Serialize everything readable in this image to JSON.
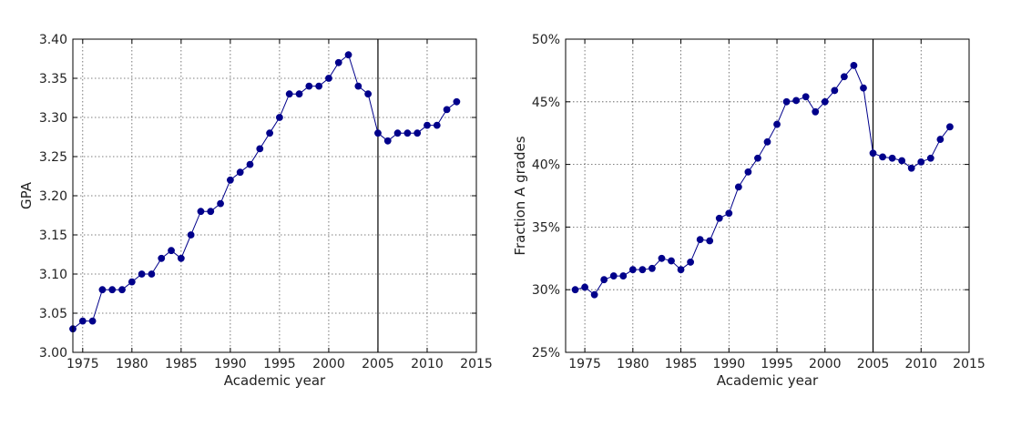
{
  "chart_data": [
    {
      "type": "line",
      "title": "",
      "xlabel": "Academic year",
      "ylabel": "GPA",
      "xlim": [
        1974,
        2015
      ],
      "ylim": [
        3.0,
        3.4
      ],
      "xticks": [
        1975,
        1980,
        1985,
        1990,
        1995,
        2000,
        2005,
        2010,
        2015
      ],
      "yticks": [
        3.0,
        3.05,
        3.1,
        3.15,
        3.2,
        3.25,
        3.3,
        3.35,
        3.4
      ],
      "ytick_labels": [
        "3.00",
        "3.05",
        "3.10",
        "3.15",
        "3.20",
        "3.25",
        "3.30",
        "3.35",
        "3.40"
      ],
      "grid": true,
      "vertical_line_x": 2005,
      "color": "#00008b",
      "series": [
        {
          "x": [
            1974,
            1975,
            1976,
            1977,
            1978,
            1979,
            1980,
            1981,
            1982,
            1983,
            1984,
            1985,
            1986,
            1987,
            1988,
            1989,
            1990,
            1991,
            1992,
            1993,
            1994,
            1995,
            1996,
            1997,
            1998,
            1999,
            2000,
            2001,
            2002,
            2003,
            2004,
            2005,
            2006,
            2007,
            2008,
            2009,
            2010,
            2011,
            2012,
            2013
          ],
          "values": [
            3.03,
            3.04,
            3.04,
            3.08,
            3.08,
            3.08,
            3.09,
            3.1,
            3.1,
            3.12,
            3.13,
            3.12,
            3.15,
            3.18,
            3.18,
            3.19,
            3.22,
            3.23,
            3.24,
            3.26,
            3.28,
            3.3,
            3.33,
            3.33,
            3.34,
            3.34,
            3.35,
            3.37,
            3.38,
            3.34,
            3.33,
            3.28,
            3.27,
            3.28,
            3.28,
            3.28,
            3.29,
            3.29,
            3.31,
            3.32
          ]
        }
      ]
    },
    {
      "type": "line",
      "title": "",
      "xlabel": "Academic year",
      "ylabel": "Fraction A grades",
      "xlim": [
        1973,
        2015
      ],
      "ylim": [
        25,
        50
      ],
      "xticks": [
        1975,
        1980,
        1985,
        1990,
        1995,
        2000,
        2005,
        2010,
        2015
      ],
      "yticks": [
        25,
        30,
        35,
        40,
        45,
        50
      ],
      "ytick_labels": [
        "25%",
        "30%",
        "35%",
        "40%",
        "45%",
        "50%"
      ],
      "grid": true,
      "vertical_line_x": 2005,
      "color": "#00008b",
      "series": [
        {
          "x": [
            1974,
            1975,
            1976,
            1977,
            1978,
            1979,
            1980,
            1981,
            1982,
            1983,
            1984,
            1985,
            1986,
            1987,
            1988,
            1989,
            1990,
            1991,
            1992,
            1993,
            1994,
            1995,
            1996,
            1997,
            1998,
            1999,
            2000,
            2001,
            2002,
            2003,
            2004,
            2005,
            2006,
            2007,
            2008,
            2009,
            2010,
            2011,
            2012,
            2013
          ],
          "values": [
            30.0,
            30.2,
            29.6,
            30.8,
            31.1,
            31.1,
            31.6,
            31.6,
            31.7,
            32.5,
            32.3,
            31.6,
            32.2,
            34.0,
            33.9,
            35.7,
            36.1,
            38.2,
            39.4,
            40.5,
            41.8,
            43.2,
            45.0,
            45.1,
            45.4,
            44.2,
            45.0,
            45.9,
            47.0,
            47.9,
            46.1,
            40.9,
            40.6,
            40.5,
            40.3,
            39.7,
            40.2,
            40.5,
            42.0,
            43.0
          ]
        }
      ]
    }
  ]
}
